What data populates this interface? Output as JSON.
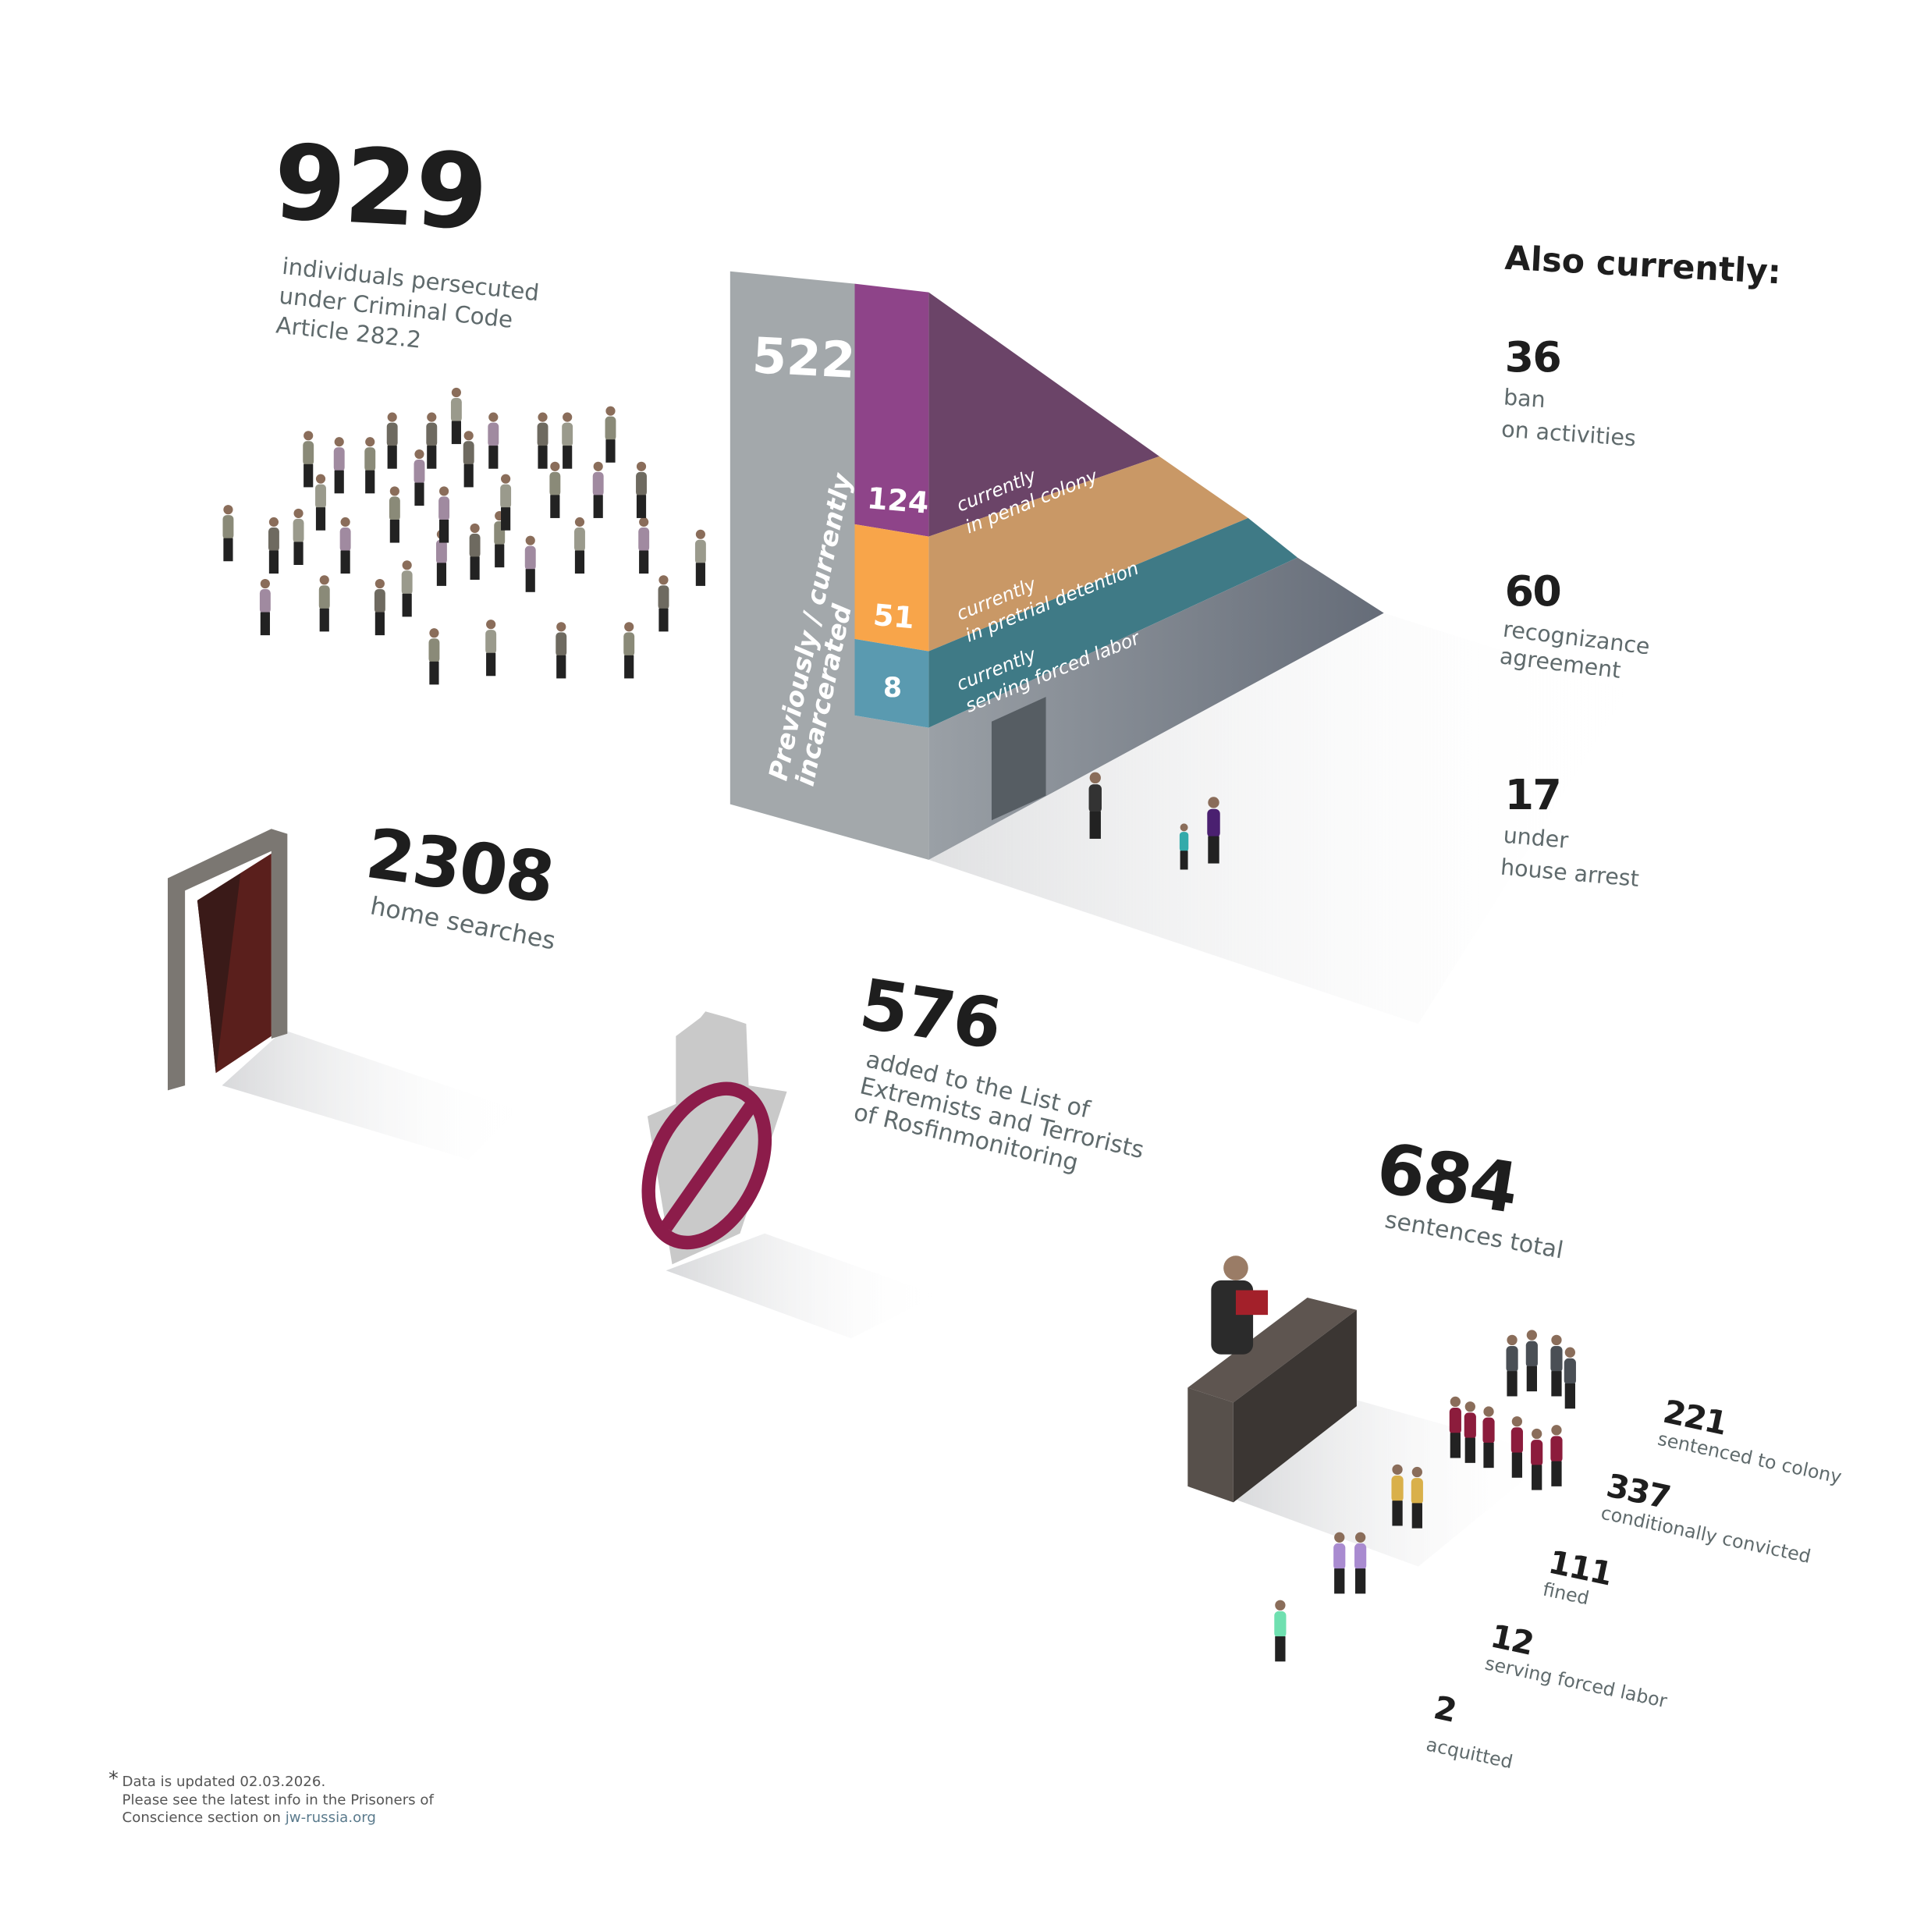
{
  "main_stat": {
    "value": "929",
    "label_lines": [
      "individuals persecuted",
      "under Criminal Code",
      "Article 282.2"
    ]
  },
  "incarceration": {
    "total": "522",
    "total_label_lines": [
      "Previously / currently",
      "incarcerated"
    ],
    "segments": [
      {
        "value": "124",
        "label_lines": [
          "currently",
          "in penal colony"
        ],
        "color": "#8e4489",
        "side_color": "#6b4468"
      },
      {
        "value": "51",
        "label_lines": [
          "currently",
          "in pretrial detention"
        ],
        "color": "#f8a54a",
        "side_color": "#c99866"
      },
      {
        "value": "8",
        "label_lines": [
          "currently",
          "serving forced labor"
        ],
        "color": "#5a9ab0",
        "side_color": "#3f7a86"
      }
    ],
    "column_color": "#a3a8ab"
  },
  "also_currently": {
    "title": "Also currently:",
    "items": [
      {
        "value": "36",
        "label_lines": [
          "ban",
          "on activities"
        ]
      },
      {
        "value": "60",
        "label_lines": [
          "recognizance",
          "agreement"
        ]
      },
      {
        "value": "17",
        "label_lines": [
          "under",
          "house arrest"
        ]
      }
    ]
  },
  "home_searches": {
    "value": "2308",
    "label": "home searches"
  },
  "extremists_list": {
    "value": "576",
    "label_lines": [
      "added to the List of",
      "Extremists and Terrorists",
      "of Rosfinmonitoring"
    ]
  },
  "sentences": {
    "value": "684",
    "label": "sentences total",
    "items": [
      {
        "value": "221",
        "label": "sentenced to colony",
        "color": "#4a4f55"
      },
      {
        "value": "337",
        "label": "conditionally convicted",
        "color": "#8c1c3c"
      },
      {
        "value": "111",
        "label": "fined",
        "color": "#d9b04a"
      },
      {
        "value": "12",
        "label": "serving forced labor",
        "color": "#a98bd0"
      },
      {
        "value": "2",
        "label": "acquitted",
        "color": "#6fe0b0"
      }
    ]
  },
  "footer": {
    "asterisk": "*",
    "line1": "Data is updated 02.03.2026.",
    "line2": "Please see the latest info in the Prisoners of",
    "line3_prefix": "Conscience section on ",
    "link": "jw-russia.org"
  }
}
